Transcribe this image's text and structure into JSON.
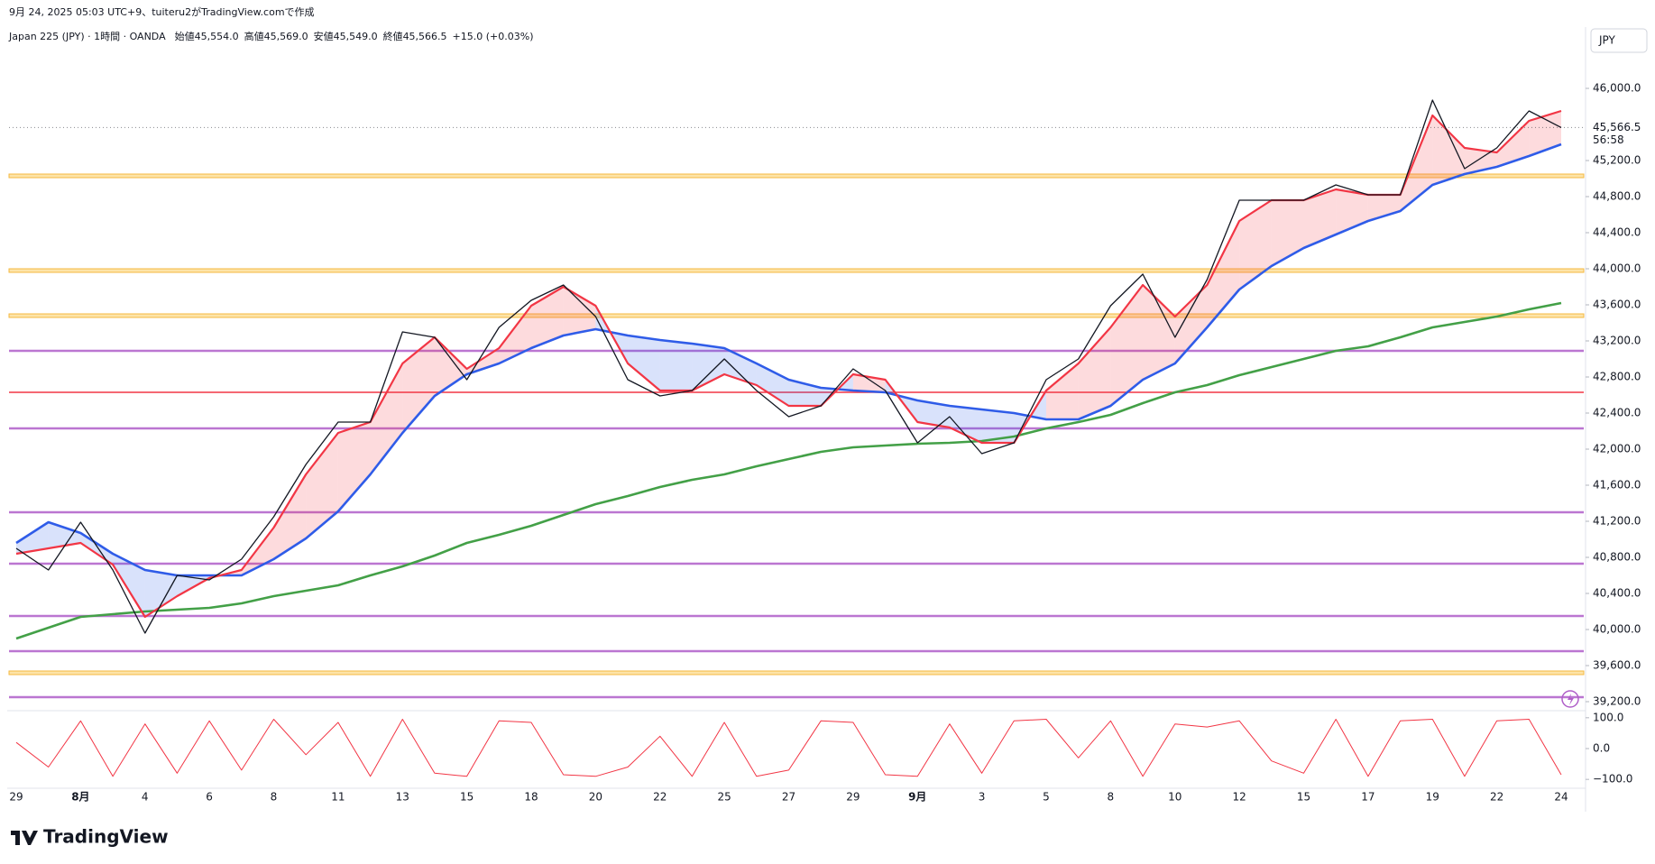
{
  "attribution": "9月 24, 2025 05:03 UTC+9、tuiteru2がTradingView.comで作成",
  "brand": "TradingView",
  "chart_data": {
    "type": "line",
    "title": "Japan 225 (JPY) · 1時間 · OANDA",
    "ohlc": [
      {
        "label": "始値",
        "value": "45,554.0"
      },
      {
        "label": "高値",
        "value": "45,569.0"
      },
      {
        "label": "安値",
        "value": "45,549.0"
      },
      {
        "label": "終値",
        "value": "45,566.5"
      }
    ],
    "change": "+15.0 (+0.03%)",
    "currency": "JPY",
    "categories": [
      "29",
      null,
      "8月",
      null,
      "4",
      null,
      "6",
      null,
      "8",
      null,
      "11",
      null,
      "13",
      null,
      "15",
      null,
      "18",
      null,
      "20",
      null,
      "22",
      null,
      "25",
      null,
      "27",
      null,
      "29",
      null,
      "9月",
      null,
      "3",
      null,
      "5",
      null,
      "8",
      null,
      "10",
      null,
      "12",
      null,
      "15",
      null,
      "17",
      null,
      "19",
      null,
      "22",
      null,
      "24"
    ],
    "series": [
      {
        "color": "#131722",
        "values": [
          40900,
          40660,
          41190,
          40660,
          39960,
          40600,
          40550,
          40780,
          41250,
          41830,
          42300,
          42300,
          43300,
          43240,
          42770,
          43350,
          43650,
          43820,
          43470,
          42770,
          42590,
          42650,
          43000,
          42650,
          42360,
          42480,
          42890,
          42650,
          42070,
          42360,
          41950,
          42070,
          42770,
          43000,
          43590,
          43940,
          43240,
          43880,
          44760,
          44760,
          44760,
          44930,
          44820,
          44820,
          45870,
          45110,
          45340,
          45750,
          45566.5
        ]
      },
      {
        "color": "#f23645",
        "values": [
          40840,
          40900,
          40960,
          40720,
          40140,
          40370,
          40570,
          40660,
          41130,
          41720,
          42180,
          42300,
          42950,
          43240,
          42890,
          43120,
          43590,
          43800,
          43590,
          42950,
          42650,
          42650,
          42830,
          42710,
          42480,
          42480,
          42830,
          42770,
          42300,
          42240,
          42070,
          42070,
          42650,
          42950,
          43350,
          43820,
          43470,
          43820,
          44530,
          44760,
          44760,
          44880,
          44820,
          44820,
          45700,
          45340,
          45290,
          45640,
          45750
        ]
      },
      {
        "color": "#2f5ce8",
        "values": [
          40960,
          41190,
          41070,
          40840,
          40660,
          40600,
          40600,
          40600,
          40780,
          41010,
          41310,
          41720,
          42180,
          42590,
          42830,
          42950,
          43120,
          43260,
          43330,
          43260,
          43210,
          43170,
          43120,
          42950,
          42770,
          42680,
          42650,
          42630,
          42540,
          42480,
          42440,
          42400,
          42330,
          42330,
          42480,
          42770,
          42950,
          43350,
          43770,
          44030,
          44230,
          44380,
          44530,
          44640,
          44930,
          45050,
          45130,
          45250,
          45380
        ]
      },
      {
        "color": "#43a047",
        "values": [
          39900,
          40020,
          40140,
          40170,
          40200,
          40220,
          40240,
          40290,
          40370,
          40430,
          40490,
          40600,
          40700,
          40820,
          40960,
          41050,
          41150,
          41270,
          41390,
          41480,
          41580,
          41660,
          41720,
          41810,
          41890,
          41970,
          42020,
          42040,
          42060,
          42070,
          42090,
          42140,
          42230,
          42300,
          42380,
          42510,
          42630,
          42710,
          42820,
          42910,
          43000,
          43090,
          43140,
          43240,
          43350,
          43410,
          43470,
          43550,
          43620
        ]
      }
    ],
    "ylim": [
      39140,
      46400
    ],
    "yticks": [
      {
        "value": 39200,
        "label": "39,200.0"
      },
      {
        "value": 39600,
        "label": "39,600.0"
      },
      {
        "value": 40000,
        "label": "40,000.0"
      },
      {
        "value": 40400,
        "label": "40,400.0"
      },
      {
        "value": 40800,
        "label": "40,800.0"
      },
      {
        "value": 41200,
        "label": "41,200.0"
      },
      {
        "value": 41600,
        "label": "41,600.0"
      },
      {
        "value": 42000,
        "label": "42,000.0"
      },
      {
        "value": 42400,
        "label": "42,400.0"
      },
      {
        "value": 42800,
        "label": "42,800.0"
      },
      {
        "value": 43200,
        "label": "43,200.0"
      },
      {
        "value": 43600,
        "label": "43,600.0"
      },
      {
        "value": 44000,
        "label": "44,000.0"
      },
      {
        "value": 44400,
        "label": "44,400.0"
      },
      {
        "value": 44800,
        "label": "44,800.0"
      },
      {
        "value": 45200,
        "label": "45,200.0"
      },
      {
        "value": 46000,
        "label": "46,000.0"
      }
    ],
    "last_price": {
      "value": 45566.5,
      "label": "45,566.5"
    },
    "countdown": "56:58",
    "levels": [
      {
        "value": 45030,
        "color": "#f5b942"
      },
      {
        "value": 43980,
        "color": "#f5b942"
      },
      {
        "value": 43480,
        "color": "#f5b942"
      },
      {
        "value": 43090,
        "color": "#b05fc9"
      },
      {
        "value": 42630,
        "color": "#f23645"
      },
      {
        "value": 42230,
        "color": "#b05fc9"
      },
      {
        "value": 41300,
        "color": "#b05fc9"
      },
      {
        "value": 40730,
        "color": "#b05fc9"
      },
      {
        "value": 40150,
        "color": "#b05fc9"
      },
      {
        "value": 39760,
        "color": "#b05fc9"
      },
      {
        "value": 39520,
        "color": "#f5b942"
      },
      {
        "value": 39250,
        "color": "#b05fc9"
      }
    ],
    "oscillator": {
      "color": "#f23645",
      "values": [
        20,
        -60,
        90,
        -90,
        80,
        -80,
        90,
        -70,
        95,
        -20,
        85,
        -90,
        95,
        -80,
        -90,
        90,
        85,
        -85,
        -90,
        -60,
        40,
        -90,
        85,
        -90,
        -70,
        90,
        85,
        -85,
        -90,
        80,
        -80,
        90,
        95,
        -30,
        90,
        -90,
        80,
        70,
        90,
        -40,
        -80,
        95,
        -90,
        90,
        95,
        -90,
        90,
        95,
        -85
      ],
      "ylim": [
        -120,
        120
      ],
      "yticks": [
        {
          "value": 100,
          "label": "100.0"
        },
        {
          "value": 0,
          "label": "0.0"
        },
        {
          "value": -100,
          "label": "−100.0"
        }
      ]
    }
  }
}
